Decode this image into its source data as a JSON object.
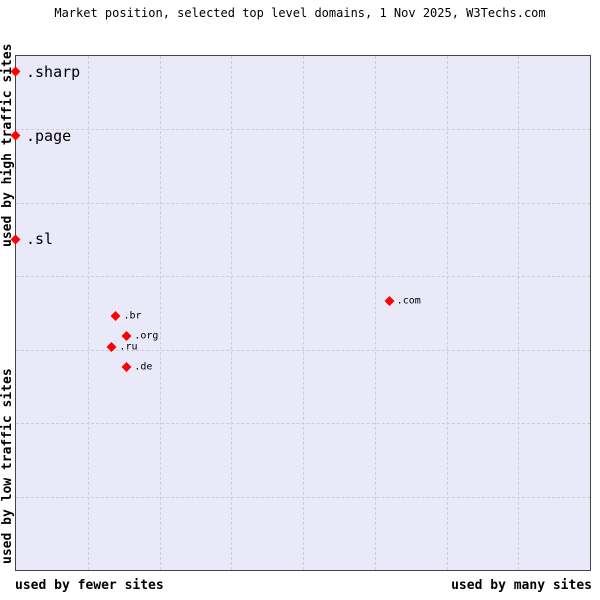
{
  "chart_data": {
    "type": "scatter",
    "title": "Market position, selected top level domains, 1 Nov 2025, W3Techs.com",
    "x_axis": {
      "left_label": "used by fewer sites",
      "right_label": "used by many sites"
    },
    "y_axis": {
      "top_label": "used by high traffic sites",
      "bottom_label": "used by low traffic sites"
    },
    "grid": {
      "columns": 8,
      "rows": 7,
      "line_style": "dashed"
    },
    "colors": {
      "marker": "#ff0000",
      "plot_background": "#e9e9f9",
      "grid_line": "#ccccdd",
      "border": "#444444"
    },
    "legend": "none",
    "points": [
      {
        "label": ".sharp",
        "x_pct": 0.0,
        "y_pct": 3.1,
        "label_size": "large"
      },
      {
        "label": ".page",
        "x_pct": 0.0,
        "y_pct": 15.5,
        "label_size": "large"
      },
      {
        "label": ".sl",
        "x_pct": 0.0,
        "y_pct": 35.7,
        "label_size": "large"
      },
      {
        "label": ".com",
        "x_pct": 65.1,
        "y_pct": 47.7,
        "label_size": "small"
      },
      {
        "label": ".br",
        "x_pct": 17.5,
        "y_pct": 50.6,
        "label_size": "small"
      },
      {
        "label": ".org",
        "x_pct": 19.4,
        "y_pct": 54.5,
        "label_size": "small"
      },
      {
        "label": ".ru",
        "x_pct": 16.8,
        "y_pct": 56.6,
        "label_size": "small"
      },
      {
        "label": ".de",
        "x_pct": 19.4,
        "y_pct": 60.5,
        "label_size": "small"
      }
    ]
  }
}
